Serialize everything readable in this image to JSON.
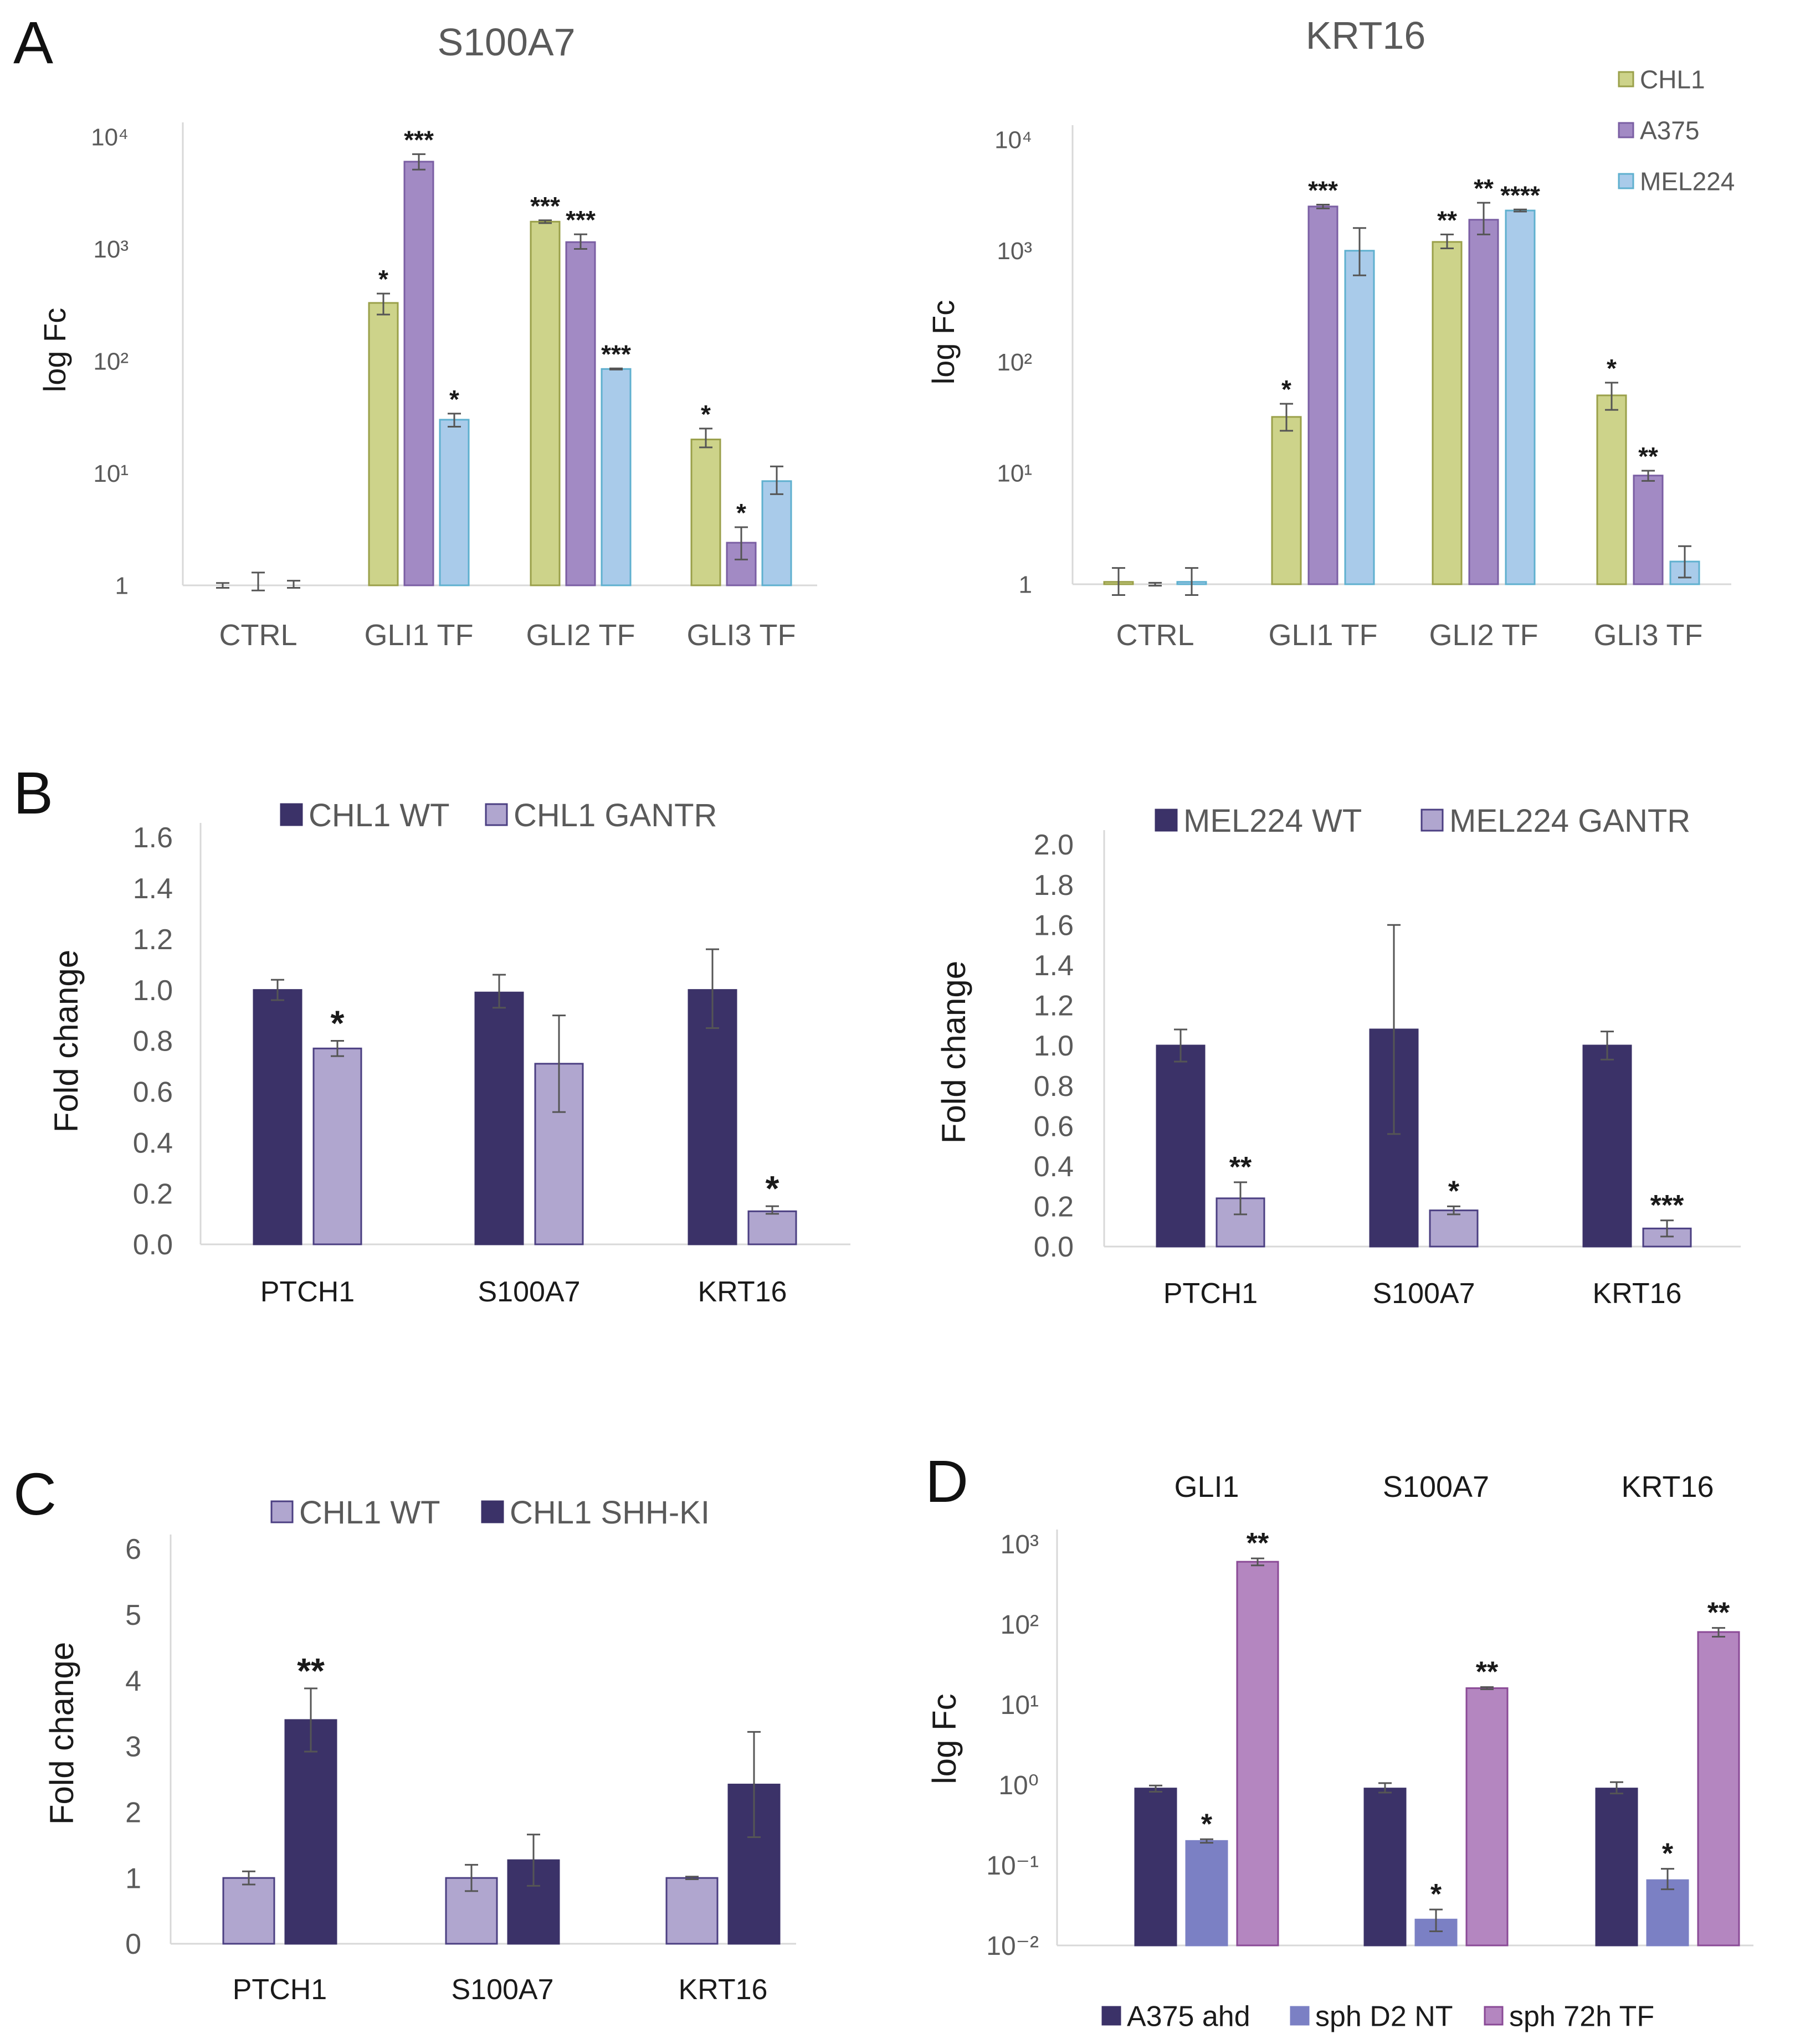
{
  "colors": {
    "chl1": "#cdd38a",
    "chl1_edge": "#9aa04a",
    "a375": "#a28ac4",
    "a375_edge": "#7a5ea3",
    "mel224": "#a9cbea",
    "mel224_edge": "#5fb0cf",
    "navy": "#3b3268",
    "lavender": "#b0a6cf",
    "lav_edge": "#4b3f82",
    "blue_mid": "#7b80c4",
    "pink": "#b486c0",
    "pink_edge": "#8a4a96",
    "axis": "#d8d8d8",
    "err": "#555555",
    "label": "#5a5a5a",
    "dark": "#1a1a1a"
  },
  "chart_data": [
    {
      "panel": "A",
      "panel_label": "A",
      "title": "S100A7",
      "type": "bar",
      "scale": "log",
      "xlabel": "",
      "ylabel": "log Fc",
      "ylim": [
        1,
        10000
      ],
      "y_ticks": [
        1,
        10,
        100,
        1000,
        10000
      ],
      "y_tick_labels": [
        "1",
        "10¹",
        "10²",
        "10³",
        "10⁴"
      ],
      "categories": [
        "CTRL",
        "GLI1 TF",
        "GLI2 TF",
        "GLI3 TF"
      ],
      "series": [
        {
          "name": "CHL1",
          "values": [
            1.0,
            330,
            1750,
            20
          ],
          "err": [
            [
              0.95,
              1.05
            ],
            [
              260,
              400
            ],
            [
              1700,
              1800
            ],
            [
              17,
              25
            ]
          ],
          "stars": [
            "",
            "*",
            "***",
            "*"
          ]
        },
        {
          "name": "A375",
          "values": [
            1.0,
            6000,
            1150,
            2.4
          ],
          "err": [
            [
              0.9,
              1.3
            ],
            [
              5100,
              7000
            ],
            [
              1000,
              1350
            ],
            [
              1.7,
              3.3
            ]
          ],
          "stars": [
            "",
            "***",
            "***",
            "*"
          ]
        },
        {
          "name": "MEL224",
          "values": [
            1.0,
            30,
            85,
            8.5
          ],
          "err": [
            [
              0.95,
              1.1
            ],
            [
              26,
              34
            ],
            [
              84,
              86
            ],
            [
              6.5,
              11.5
            ]
          ],
          "stars": [
            "",
            "*",
            "***",
            ""
          ]
        }
      ]
    },
    {
      "panel": "A",
      "panel_label": "",
      "title": "KRT16",
      "type": "bar",
      "scale": "log",
      "xlabel": "",
      "ylabel": "log Fc",
      "ylim": [
        1,
        10000
      ],
      "y_ticks": [
        1,
        10,
        100,
        1000,
        10000
      ],
      "y_tick_labels": [
        "1",
        "10¹",
        "10²",
        "10³",
        "10⁴"
      ],
      "categories": [
        "CTRL",
        "GLI1 TF",
        "GLI2 TF",
        "GLI3 TF"
      ],
      "legend": [
        "CHL1",
        "A375",
        "MEL224"
      ],
      "series": [
        {
          "name": "CHL1",
          "values": [
            1.05,
            32,
            1200,
            50
          ],
          "err": [
            [
              0.8,
              1.4
            ],
            [
              24,
              42
            ],
            [
              1050,
              1400
            ],
            [
              37,
              65
            ]
          ],
          "stars": [
            "",
            "*",
            "**",
            "*"
          ]
        },
        {
          "name": "A375",
          "values": [
            1.0,
            2500,
            1900,
            9.5
          ],
          "err": [
            [
              0.97,
              1.03
            ],
            [
              2400,
              2600
            ],
            [
              1400,
              2700
            ],
            [
              8.5,
              10.5
            ]
          ],
          "stars": [
            "",
            "***",
            "**",
            "**"
          ]
        },
        {
          "name": "MEL224",
          "values": [
            1.05,
            1000,
            2300,
            1.6
          ],
          "err": [
            [
              0.8,
              1.4
            ],
            [
              600,
              1600
            ],
            [
              2250,
              2350
            ],
            [
              1.15,
              2.2
            ]
          ],
          "stars": [
            "",
            "",
            "****",
            ""
          ]
        }
      ]
    },
    {
      "panel": "B",
      "panel_label": "B",
      "title": "",
      "type": "bar",
      "scale": "linear",
      "xlabel": "",
      "ylabel": "Fold change",
      "ylim": [
        0,
        1.6
      ],
      "y_ticks": [
        0,
        0.2,
        0.4,
        0.6,
        0.8,
        1.0,
        1.2,
        1.4,
        1.6
      ],
      "y_tick_labels": [
        "0.0",
        "0.2",
        "0.4",
        "0.6",
        "0.8",
        "1.0",
        "1.2",
        "1.4",
        "1.6"
      ],
      "categories": [
        "PTCH1",
        "S100A7",
        "KRT16"
      ],
      "legend": [
        "CHL1 WT",
        "CHL1 GANTR"
      ],
      "series": [
        {
          "name": "CHL1 WT",
          "values": [
            1.0,
            0.99,
            1.0
          ],
          "err": [
            [
              0.96,
              1.04
            ],
            [
              0.93,
              1.06
            ],
            [
              0.85,
              1.16
            ]
          ],
          "stars": [
            "",
            "",
            ""
          ]
        },
        {
          "name": "CHL1 GANTR",
          "values": [
            0.77,
            0.71,
            0.13
          ],
          "err": [
            [
              0.74,
              0.8
            ],
            [
              0.52,
              0.9
            ],
            [
              0.12,
              0.15
            ]
          ],
          "stars": [
            "*",
            "",
            "*"
          ]
        }
      ]
    },
    {
      "panel": "B",
      "panel_label": "",
      "title": "",
      "type": "bar",
      "scale": "linear",
      "xlabel": "",
      "ylabel": "Fold change",
      "ylim": [
        0,
        2.0
      ],
      "y_ticks": [
        0,
        0.2,
        0.4,
        0.6,
        0.8,
        1.0,
        1.2,
        1.4,
        1.6,
        1.8,
        2.0
      ],
      "y_tick_labels": [
        "0.0",
        "0.2",
        "0.4",
        "0.6",
        "0.8",
        "1.0",
        "1.2",
        "1.4",
        "1.6",
        "1.8",
        "2.0"
      ],
      "categories": [
        "PTCH1",
        "S100A7",
        "KRT16"
      ],
      "legend": [
        "MEL224 WT",
        "MEL224 GANTR"
      ],
      "series": [
        {
          "name": "MEL224 WT",
          "values": [
            1.0,
            1.08,
            1.0
          ],
          "err": [
            [
              0.92,
              1.08
            ],
            [
              0.56,
              1.6
            ],
            [
              0.93,
              1.07
            ]
          ],
          "stars": [
            "",
            "",
            ""
          ]
        },
        {
          "name": "MEL224 GANTR",
          "values": [
            0.24,
            0.18,
            0.09
          ],
          "err": [
            [
              0.16,
              0.32
            ],
            [
              0.16,
              0.2
            ],
            [
              0.05,
              0.13
            ]
          ],
          "stars": [
            "**",
            "*",
            "***"
          ]
        }
      ]
    },
    {
      "panel": "C",
      "panel_label": "C",
      "title": "",
      "type": "bar",
      "scale": "linear",
      "xlabel": "",
      "ylabel": "Fold change",
      "ylim": [
        0,
        6
      ],
      "y_ticks": [
        0,
        1,
        2,
        3,
        4,
        5,
        6
      ],
      "y_tick_labels": [
        "0",
        "1",
        "2",
        "3",
        "4",
        "5",
        "6"
      ],
      "categories": [
        "PTCH1",
        "S100A7",
        "KRT16"
      ],
      "legend": [
        "CHL1 WT",
        "CHL1 SHH-KI"
      ],
      "series": [
        {
          "name": "CHL1 WT",
          "values": [
            1.0,
            1.0,
            1.0
          ],
          "err": [
            [
              0.9,
              1.1
            ],
            [
              0.8,
              1.2
            ],
            [
              0.98,
              1.02
            ]
          ],
          "stars": [
            "",
            "",
            ""
          ]
        },
        {
          "name": "CHL1 SHH-KI",
          "values": [
            3.4,
            1.27,
            2.42
          ],
          "err": [
            [
              2.92,
              3.88
            ],
            [
              0.88,
              1.66
            ],
            [
              1.62,
              3.22
            ]
          ],
          "stars": [
            "**",
            "",
            ""
          ]
        }
      ]
    },
    {
      "panel": "D",
      "panel_label": "D",
      "title": "",
      "type": "bar",
      "scale": "log",
      "xlabel": "",
      "ylabel": "log Fc",
      "ylim": [
        0.01,
        1000
      ],
      "y_ticks": [
        0.01,
        0.1,
        1,
        10,
        100,
        1000
      ],
      "y_tick_labels": [
        "10⁻²",
        "10⁻¹",
        "10⁰",
        "10¹",
        "10²",
        "10³"
      ],
      "categories": [
        "GLI1",
        "S100A7",
        "KRT16"
      ],
      "legend": [
        "A375 ahd",
        "sph D2 NT",
        "sph 72h TF"
      ],
      "series": [
        {
          "name": "A375 ahd",
          "values": [
            0.9,
            0.9,
            0.9
          ],
          "err": [
            [
              0.82,
              0.98
            ],
            [
              0.8,
              1.05
            ],
            [
              0.78,
              1.08
            ]
          ],
          "stars": [
            "",
            "",
            ""
          ]
        },
        {
          "name": "sph D2 NT",
          "values": [
            0.2,
            0.021,
            0.065
          ],
          "err": [
            [
              0.19,
              0.21
            ],
            [
              0.015,
              0.028
            ],
            [
              0.05,
              0.09
            ]
          ],
          "stars": [
            "*",
            "*",
            "*"
          ]
        },
        {
          "name": "sph 72h TF",
          "values": [
            600,
            16,
            80
          ],
          "err": [
            [
              540,
              660
            ],
            [
              15.5,
              16.5
            ],
            [
              70,
              90
            ]
          ],
          "stars": [
            "**",
            "**",
            "**"
          ]
        }
      ]
    }
  ]
}
